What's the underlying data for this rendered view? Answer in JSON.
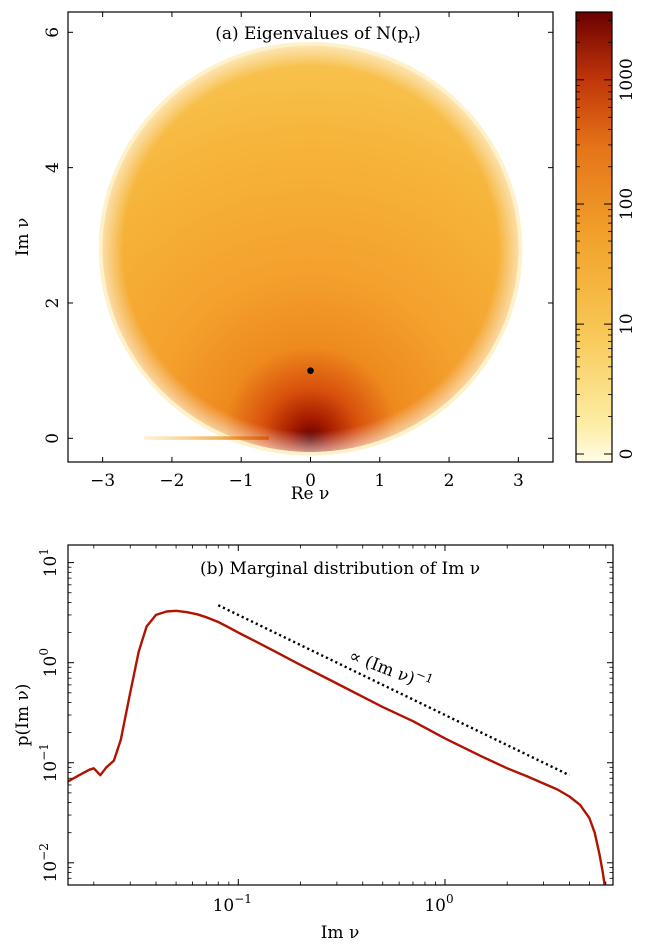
{
  "colors": {
    "density_low": "#fff6cf",
    "density_mid": "#f0a52a",
    "density_high": "#6b0000",
    "curve": "#b01400",
    "reference": "#000000"
  },
  "chart_data": [
    {
      "type": "heatmap",
      "title": "(a) Eigenvalues of N(p",
      "title_sub": "r",
      "title_end": ")",
      "xlabel": "Re ν",
      "ylabel": "Im ν",
      "xlim": [
        -3.5,
        3.5
      ],
      "ylim": [
        -0.35,
        6.3
      ],
      "x_ticks": [
        -3,
        -2,
        -1,
        0,
        1,
        2,
        3
      ],
      "x_tick_labels": [
        "−3",
        "−2",
        "−1",
        "0",
        "1",
        "2",
        "3"
      ],
      "y_ticks": [
        0,
        2,
        4,
        6
      ],
      "y_tick_labels": [
        "0",
        "2",
        "4",
        "6"
      ],
      "support_disk": {
        "center": [
          0,
          2.8
        ],
        "radius": 3.0
      },
      "marker_point": {
        "x": 0,
        "y": 1
      },
      "colorbar": {
        "scale": "log",
        "tick_labels": [
          "0",
          "10",
          "100",
          "1000"
        ]
      }
    },
    {
      "type": "line",
      "title": "(b) Marginal distribution of Im ν",
      "xlabel": "Im ν",
      "ylabel": "p(Im ν)",
      "x_scale": "log",
      "y_scale": "log",
      "xlim": [
        0.015,
        6.5
      ],
      "ylim": [
        0.006,
        15
      ],
      "x_tick_labels": [
        {
          "base": "10",
          "exp": "−1",
          "value": 0.1
        },
        {
          "base": "10",
          "exp": "0",
          "value": 1
        }
      ],
      "y_tick_labels": [
        {
          "base": "10",
          "exp": "−2",
          "value": 0.01
        },
        {
          "base": "10",
          "exp": "−1",
          "value": 0.1
        },
        {
          "base": "10",
          "exp": "0",
          "value": 1
        },
        {
          "base": "10",
          "exp": "1",
          "value": 10
        }
      ],
      "series": [
        {
          "x": [
            0.015,
            0.017,
            0.019,
            0.02,
            0.0215,
            0.023,
            0.025,
            0.027,
            0.03,
            0.033,
            0.036,
            0.04,
            0.045,
            0.05,
            0.056,
            0.063,
            0.07,
            0.08,
            0.09,
            0.1,
            0.12,
            0.15,
            0.2,
            0.3,
            0.5,
            0.7,
            1.0,
            1.5,
            2.0,
            2.5,
            3.0,
            3.5,
            4.0,
            4.5,
            5.0,
            5.3,
            5.6,
            5.8,
            6.0
          ],
          "y": [
            0.065,
            0.075,
            0.085,
            0.088,
            0.075,
            0.09,
            0.105,
            0.17,
            0.5,
            1.3,
            2.3,
            3.0,
            3.25,
            3.3,
            3.2,
            3.05,
            2.85,
            2.55,
            2.25,
            2.0,
            1.65,
            1.3,
            0.95,
            0.62,
            0.36,
            0.26,
            0.175,
            0.116,
            0.088,
            0.073,
            0.062,
            0.054,
            0.046,
            0.038,
            0.028,
            0.02,
            0.012,
            0.008,
            0.005
          ]
        }
      ],
      "reference_line": {
        "label_main": "∝ (Im ν)",
        "label_exp": "−1",
        "x": [
          0.08,
          4.0
        ],
        "y": [
          3.75,
          0.075
        ]
      }
    }
  ]
}
